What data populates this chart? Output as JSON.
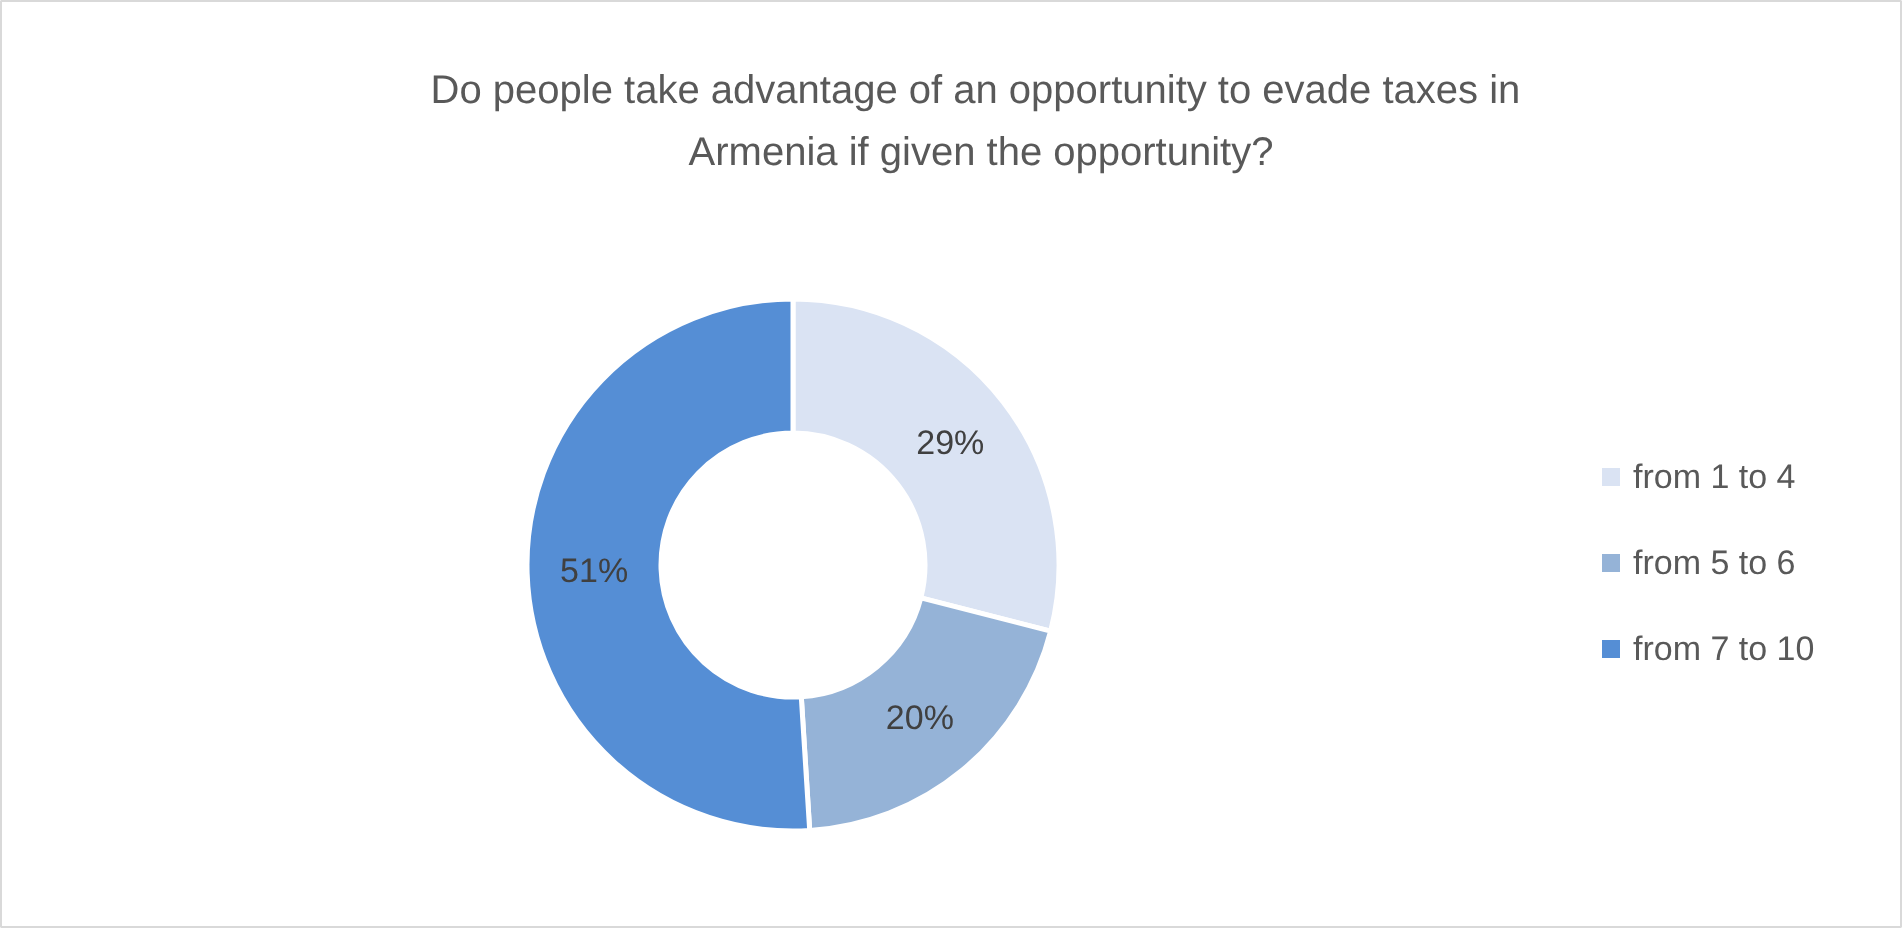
{
  "chart_data": {
    "type": "donut",
    "title": "Do people take advantage  of an opportunity to evade taxes in\nArmenia if given the opportunity?",
    "categories": [
      "from 1 to 4",
      "from 5 to 6",
      "from 7 to 10"
    ],
    "values": [
      29,
      20,
      51
    ],
    "colors": [
      "#dae3f3",
      "#95b3d7",
      "#558ed5"
    ],
    "value_labels": [
      "29%",
      "20%",
      "51%"
    ],
    "legend": "right"
  }
}
